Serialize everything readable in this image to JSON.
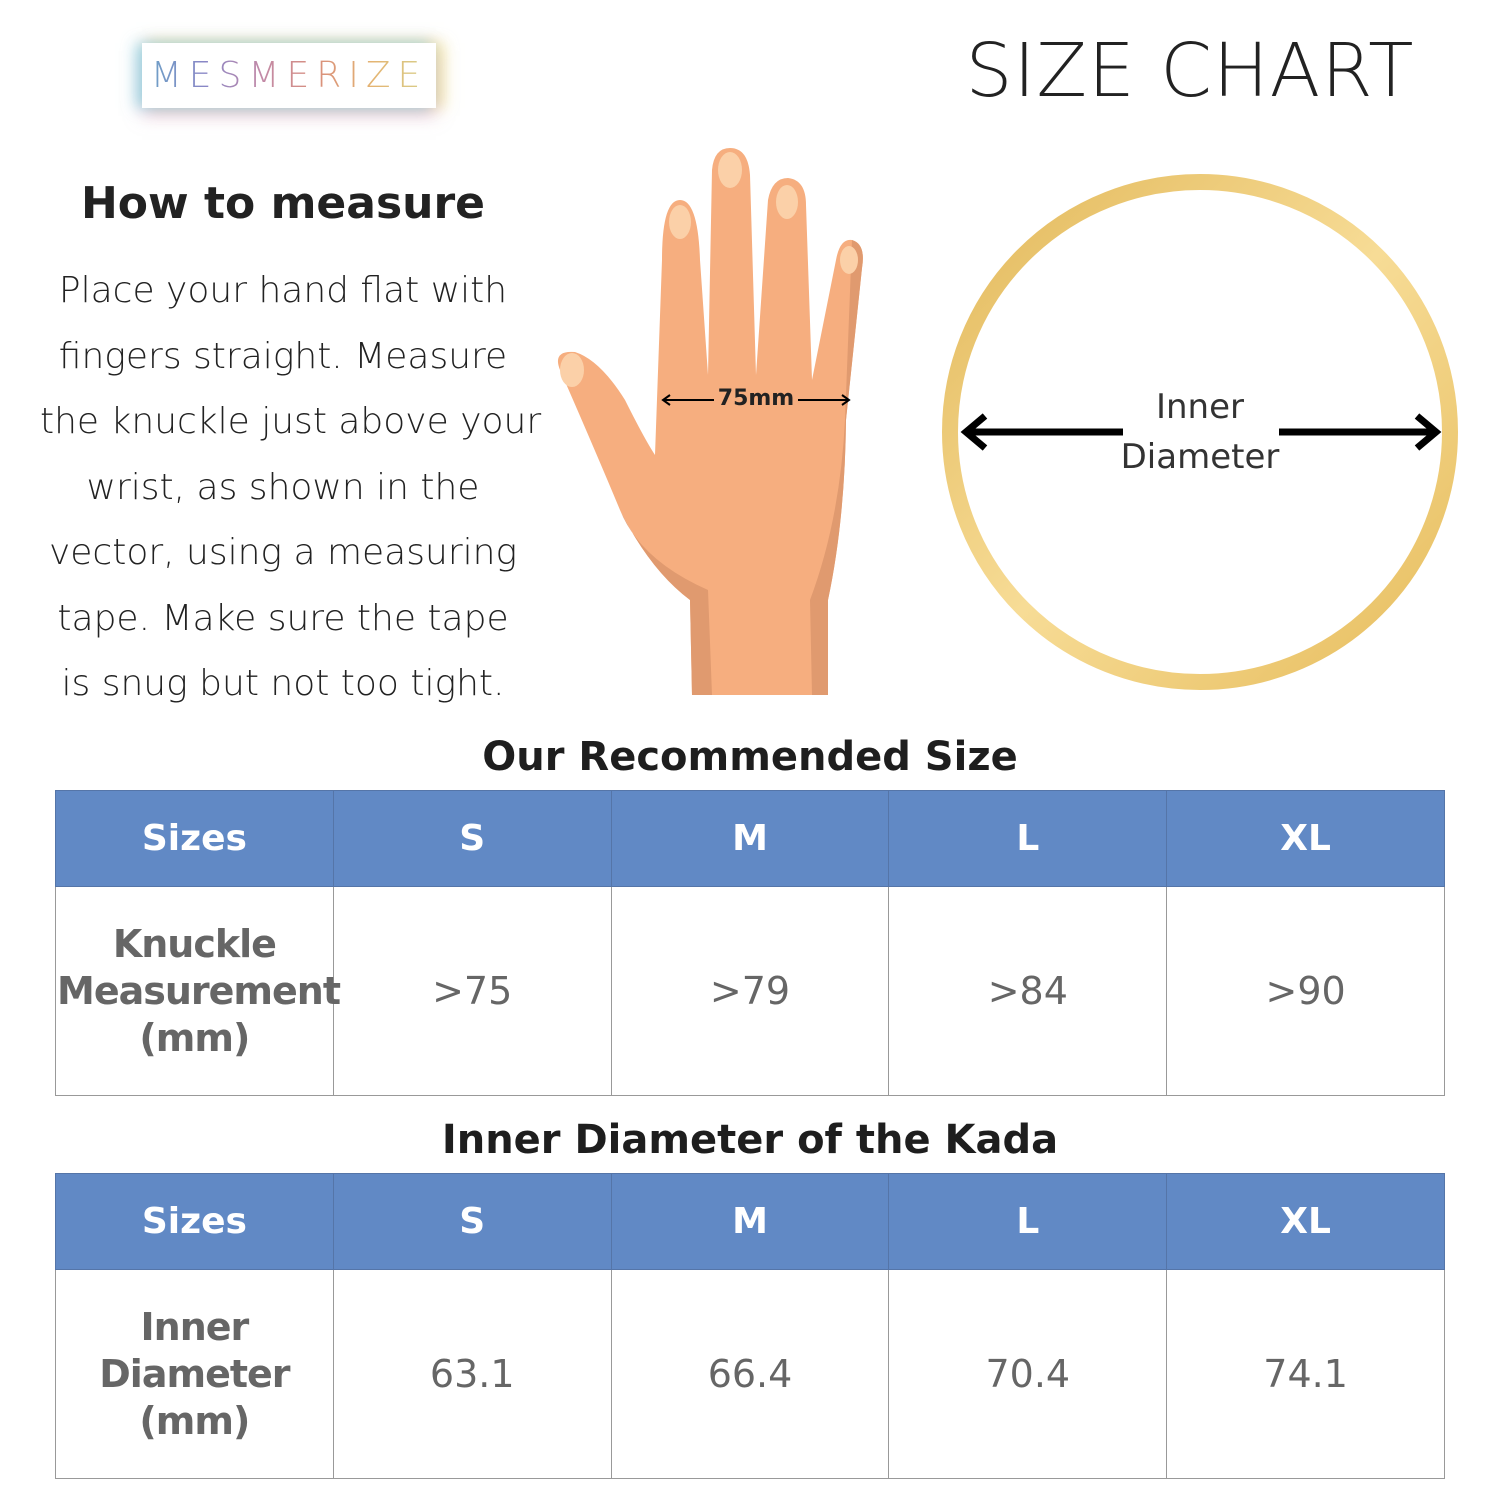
{
  "brand": {
    "logo_text": "MESMERIZE"
  },
  "header": {
    "title": "SIZE CHART"
  },
  "howto": {
    "heading": "How to measure",
    "lines": [
      "Place your hand flat with",
      "fingers straight. Measure",
      "the knuckle just above your",
      "wrist, as shown in the",
      "vector, using a measuring",
      "tape. Make sure the tape",
      "is snug but not too tight."
    ]
  },
  "hand_diagram": {
    "measure_label": "75mm",
    "skin_color": "#f6ae7f"
  },
  "ring_diagram": {
    "label_line1": "Inner",
    "label_line2": "Diameter",
    "ring_color": "#e8c062"
  },
  "table1": {
    "title": "Our Recommended Size",
    "header": [
      "Sizes",
      "S",
      "M",
      "L",
      "XL"
    ],
    "row_label": [
      "Knuckle",
      "Measurement",
      "(mm)"
    ],
    "values": [
      ">75",
      ">79",
      ">84",
      ">90"
    ]
  },
  "table2": {
    "title": "Inner Diameter of the Kada",
    "header": [
      "Sizes",
      "S",
      "M",
      "L",
      "XL"
    ],
    "row_label": [
      "Inner",
      "Diameter",
      "(mm)"
    ],
    "values": [
      "63.1",
      "66.4",
      "70.4",
      "74.1"
    ]
  },
  "colors": {
    "header_bg": "#6189c5",
    "cell_text": "#666666"
  }
}
